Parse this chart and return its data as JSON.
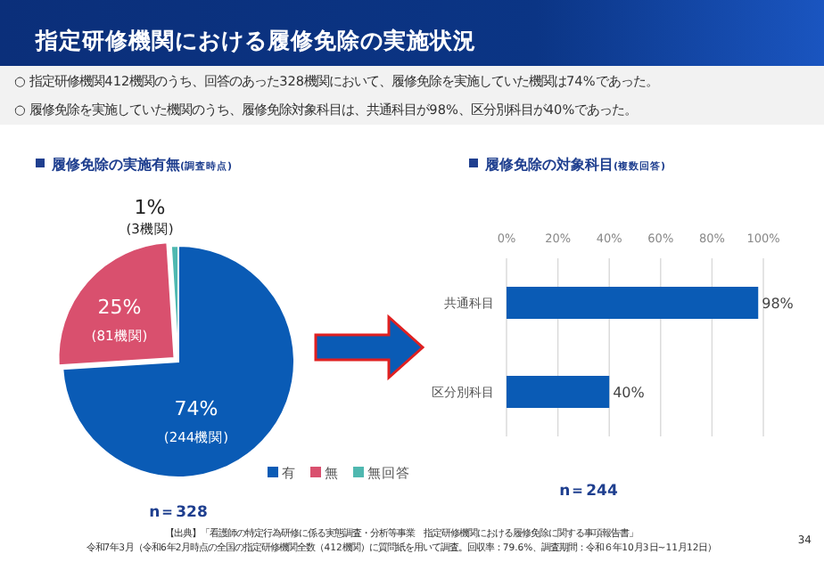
{
  "chart_data": [
    {
      "type": "pie",
      "title": "履修免除の実施有無",
      "subtitle": "(調査時点)",
      "categories": [
        "有",
        "無",
        "無回答"
      ],
      "values": [
        74,
        25,
        1
      ],
      "colors": [
        "#0a5bb5",
        "#d9506e",
        "#4fb8b0"
      ],
      "value_labels": [
        "74%\n(244機関)",
        "25%\n(81機関)",
        "1%\n(3機関)"
      ],
      "legend": "bottom right",
      "annotations": [
        "指定研修機関における履修免除の実施状況",
        "○ 指定研修機関412機関のうち、回答のあった328機関において、履修免除を実施していた機関は74%であった。",
        "○ 履修免除を実施していた機関のうち、履修免除対象科目は、共通科目が98%、区分別科目が40%であった。",
        "n＝328",
        "【出典】「看護師の特定行為研修に係る実態調査・分析等事業　指定研修機関における履修免除に関する事項報告書」",
        "令和7年3月（令和6年2月時点の全国の指定研修機関全数（412機関）に質問紙を用いて調査。回収率：79.6%、調査期間：令和６年10月3日~11月12日）",
        "34"
      ]
    },
    {
      "type": "bar",
      "orientation": "horizontal",
      "title": "履修免除の対象科目",
      "subtitle": "(複数回答)",
      "categories": [
        "共通科目",
        "区分別科目"
      ],
      "values": [
        98,
        40
      ],
      "color": "#0a5bb5",
      "value_labels": [
        "98%",
        "40%"
      ],
      "xlim": [
        0,
        100
      ],
      "xticks": [
        {
          "value": 0,
          "label": "0%"
        },
        {
          "value": 20,
          "label": "20%"
        },
        {
          "value": 40,
          "label": "40%"
        },
        {
          "value": 60,
          "label": "60%"
        },
        {
          "value": 80,
          "label": "80%"
        },
        {
          "value": 100,
          "label": "100%"
        }
      ],
      "grid": "x",
      "annotations": [
        "n＝244"
      ]
    }
  ]
}
